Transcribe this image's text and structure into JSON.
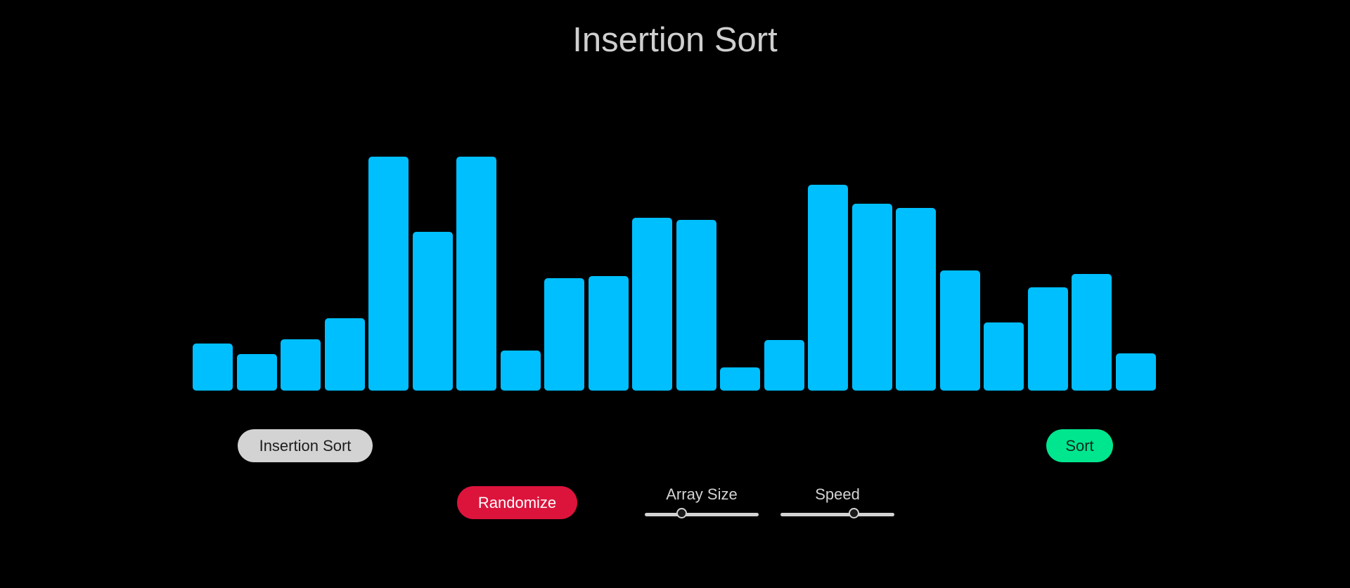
{
  "header": {
    "title": "Insertion Sort"
  },
  "colors": {
    "background": "#000000",
    "bar": "#00bfff",
    "algorithm_button": "#d3d3d3",
    "sort_button": "#00e68f",
    "randomize_button": "#dc143c",
    "slider_track": "#d3d3d3"
  },
  "chart_data": {
    "type": "bar",
    "max_value": 100,
    "values": [
      20,
      15.5,
      22,
      31,
      100,
      68,
      100,
      17,
      48,
      49,
      74,
      73,
      10,
      21.5,
      88,
      80,
      78,
      51.5,
      29,
      44,
      50,
      16
    ]
  },
  "controls": {
    "algorithm_label": "Insertion Sort",
    "sort_label": "Sort",
    "randomize_label": "Randomize",
    "array_size": {
      "label": "Array Size",
      "value": 0.33
    },
    "speed": {
      "label": "Speed",
      "value": 0.65
    }
  }
}
